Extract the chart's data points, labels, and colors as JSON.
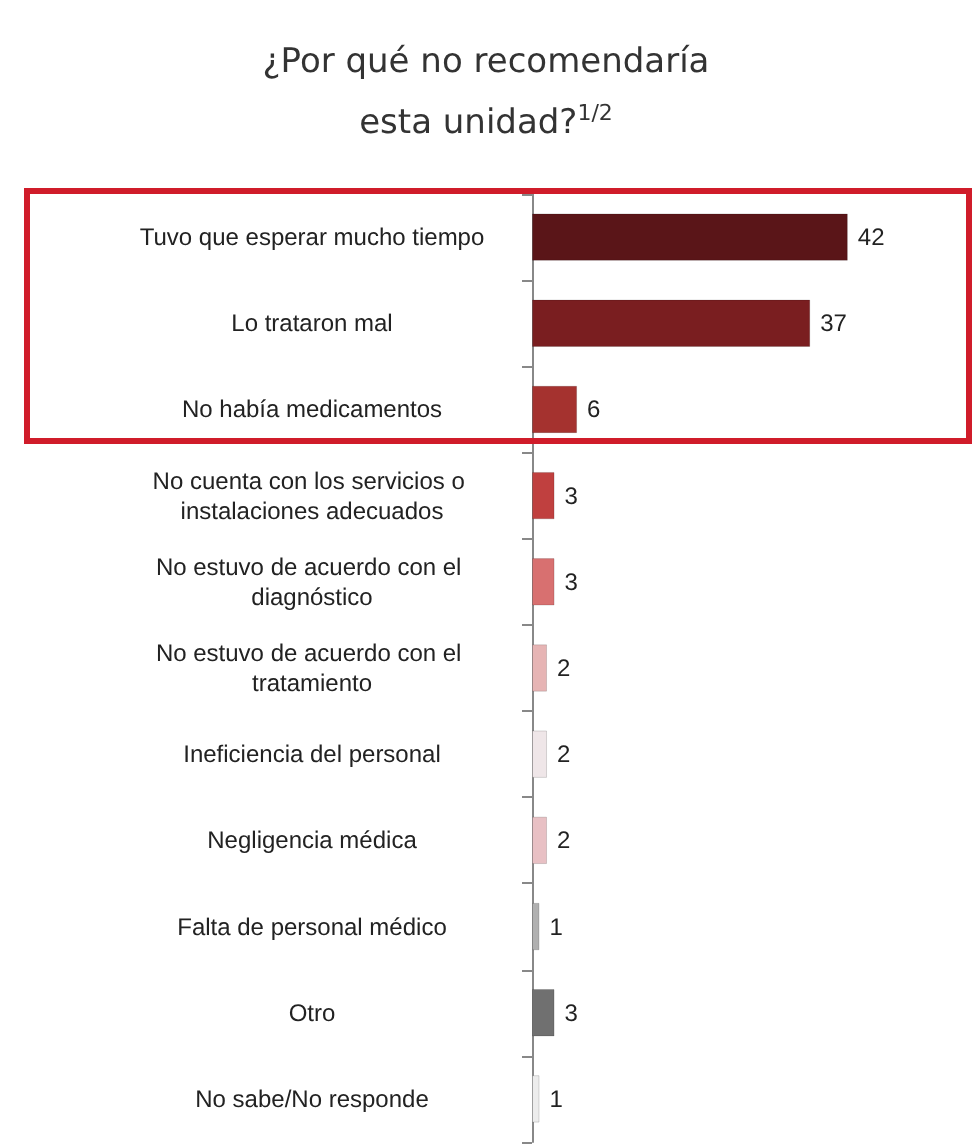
{
  "chart_data": {
    "type": "bar",
    "orientation": "horizontal",
    "title": "¿Por qué no recomendaría esta unidad?$^{1/2}$",
    "categories": [
      "Tuvo que esperar mucho tiempo",
      "Lo trataron mal",
      "No había medicamentos",
      "No cuenta con los servicios o instalaciones adecuados",
      "No estuvo de acuerdo con el diagnóstico",
      "No estuvo de acuerdo con el tratamiento",
      "Ineficiencia del personal",
      "Negligencia médica",
      "Falta de personal médico",
      "Otro",
      "No sabe/No responde"
    ],
    "values": [
      42,
      37,
      6,
      3,
      3,
      2,
      2,
      2,
      1,
      3,
      1
    ],
    "colors": [
      "#5a1518",
      "#7a1e20",
      "#a5322f",
      "#c0403f",
      "#d87070",
      "#e6b4b4",
      "#efe6e8",
      "#e8c0c4",
      "#b0b0b0",
      "#707070",
      "#ececec"
    ],
    "data_labels": true
  }
}
